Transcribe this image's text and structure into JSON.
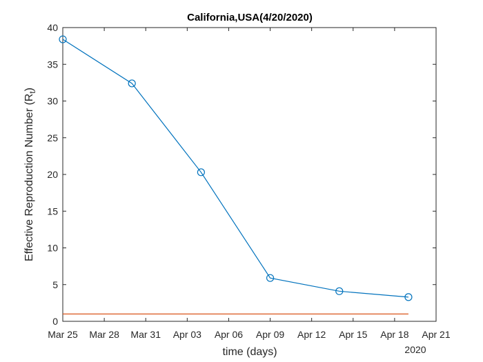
{
  "chart_data": {
    "type": "line",
    "title": "California,USA(4/20/2020)",
    "xlabel": "time (days)",
    "ylabel": "Effective Reproduction Number (R",
    "ylabel_subscript": "t",
    "ylabel_suffix": ")",
    "x_year_label": "2020",
    "x_ticks": [
      "Mar 25",
      "Mar 28",
      "Mar 31",
      "Apr 03",
      "Apr 06",
      "Apr 09",
      "Apr 12",
      "Apr 15",
      "Apr 18",
      "Apr 21"
    ],
    "x_tick_dates": [
      "2020-03-25",
      "2020-03-28",
      "2020-03-31",
      "2020-04-03",
      "2020-04-06",
      "2020-04-09",
      "2020-04-12",
      "2020-04-15",
      "2020-04-18",
      "2020-04-21"
    ],
    "y_ticks": [
      "0",
      "5",
      "10",
      "15",
      "20",
      "25",
      "30",
      "35",
      "40"
    ],
    "xlim": [
      "2020-03-25",
      "2020-04-21"
    ],
    "ylim": [
      0,
      40
    ],
    "series": [
      {
        "x": [
          "2020-03-25",
          "2020-03-30",
          "2020-04-04",
          "2020-04-09",
          "2020-04-14",
          "2020-04-19"
        ],
        "values": [
          38.4,
          32.4,
          20.3,
          5.9,
          4.1,
          3.3
        ],
        "color": "#0072BD",
        "marker": "circle"
      }
    ],
    "reference_line": {
      "y": 1,
      "x_from": "2020-03-25",
      "x_to": "2020-04-19",
      "color": "#D95319"
    }
  }
}
